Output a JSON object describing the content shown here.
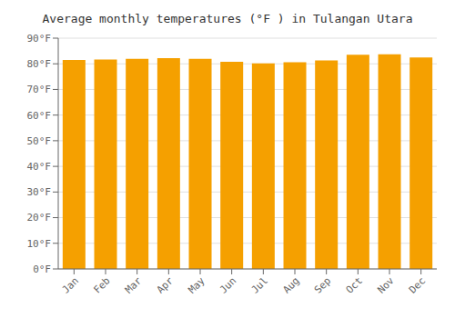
{
  "chart_data": {
    "type": "bar",
    "title": "Average monthly temperatures (°F ) in Tulangan Utara",
    "categories": [
      "Jan",
      "Feb",
      "Mar",
      "Apr",
      "May",
      "Jun",
      "Jul",
      "Aug",
      "Sep",
      "Oct",
      "Nov",
      "Dec"
    ],
    "values": [
      81.5,
      81.7,
      81.9,
      82.2,
      81.9,
      80.8,
      80.2,
      80.6,
      81.3,
      83.5,
      83.7,
      82.5
    ],
    "color": "#F5A000",
    "ylim": [
      0,
      90
    ],
    "yticks": [
      {
        "value": 0,
        "label": "0°F"
      },
      {
        "value": 10,
        "label": "10°F"
      },
      {
        "value": 20,
        "label": "20°F"
      },
      {
        "value": 30,
        "label": "30°F"
      },
      {
        "value": 40,
        "label": "40°F"
      },
      {
        "value": 50,
        "label": "50°F"
      },
      {
        "value": 60,
        "label": "60°F"
      },
      {
        "value": 70,
        "label": "70°F"
      },
      {
        "value": 80,
        "label": "80°F"
      },
      {
        "value": 90,
        "label": "90°F"
      }
    ],
    "grid": true
  }
}
